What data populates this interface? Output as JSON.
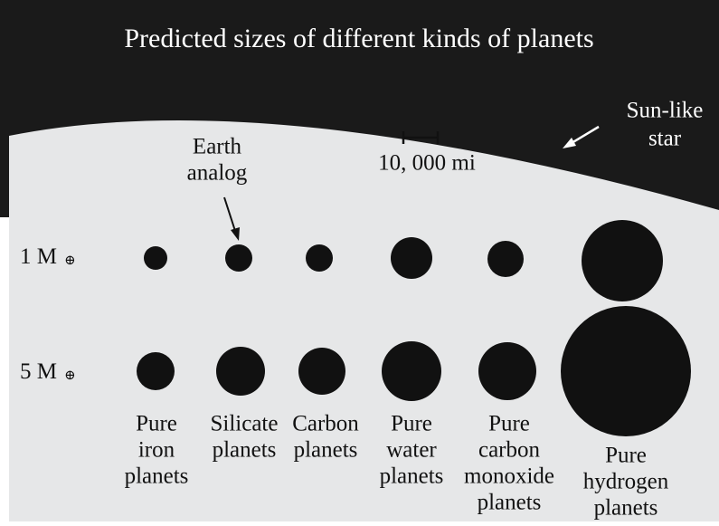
{
  "title": "Predicted sizes of different kinds of planets",
  "star_label": [
    "Sun-like",
    "star"
  ],
  "scale_label": "10, 000 mi",
  "earth_label": [
    "Earth",
    "analog"
  ],
  "rows": [
    {
      "label": "1 M",
      "symbol": "⊕"
    },
    {
      "label": "5 M",
      "symbol": "⊕"
    }
  ],
  "columns": [
    {
      "label": [
        "Pure",
        "iron",
        "planets"
      ]
    },
    {
      "label": [
        "Silicate",
        "planets"
      ]
    },
    {
      "label": [
        "Carbon",
        "planets"
      ]
    },
    {
      "label": [
        "Pure",
        "water",
        "planets"
      ]
    },
    {
      "label": [
        "Pure",
        "carbon",
        "monoxide",
        "planets"
      ]
    },
    {
      "label": [
        "Pure",
        "hydrogen",
        "planets"
      ]
    }
  ]
}
